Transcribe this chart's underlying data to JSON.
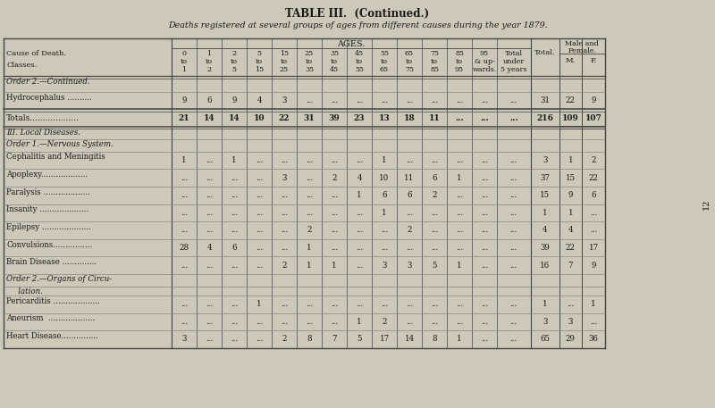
{
  "title": "TABLE III.  (Continued.)",
  "subtitle": "Deaths registered at several groups of ages from different causes during the year 1879.",
  "bg_color": "#cec8b8",
  "text_color": "#1a1a1a",
  "rows": [
    {
      "label": "Order 2.—Continued.",
      "style": "section",
      "data": null
    },
    {
      "label": "Hydrocephalus ..........",
      "style": "data",
      "data": [
        "9",
        "6",
        "9",
        "4",
        "3",
        "...",
        "...",
        "...",
        "...",
        "...",
        "...",
        "...",
        "...",
        "...",
        "31",
        "22",
        "9"
      ]
    },
    {
      "label": "Totals...................",
      "style": "totals",
      "data": [
        "21",
        "14",
        "14",
        "10",
        "22",
        "31",
        "39",
        "23",
        "13",
        "18",
        "11",
        "...",
        "...",
        "...",
        "216",
        "109",
        "107"
      ]
    },
    {
      "label": "III. Local Diseases.",
      "style": "section2",
      "data": null
    },
    {
      "label": "Order 1.—Nervous System.",
      "style": "subsection",
      "data": null
    },
    {
      "label": "Cephalitis and Meningitis",
      "style": "data",
      "data": [
        "1",
        "...",
        "1",
        "...",
        "...",
        "...",
        "...",
        "...",
        "1",
        "...",
        "...",
        "...",
        "...",
        "...",
        "3",
        "1",
        "2"
      ]
    },
    {
      "label": "Apoplexy...................",
      "style": "data",
      "data": [
        "...",
        "...",
        "...",
        "...",
        "3",
        "...",
        "2",
        "4",
        "10",
        "11",
        "6",
        "1",
        "...",
        "...",
        "37",
        "15",
        "22"
      ]
    },
    {
      "label": "Paralysis ...................",
      "style": "data",
      "data": [
        "...",
        "...",
        "...",
        "...",
        "...",
        "...",
        "...",
        "1",
        "6",
        "6",
        "2",
        "...",
        "...",
        "...",
        "15",
        "9",
        "6"
      ]
    },
    {
      "label": "Insanity ....................",
      "style": "data",
      "data": [
        "...",
        "...",
        "...",
        "...",
        "...",
        "...",
        "...",
        "...",
        "1",
        "...",
        "...",
        "...",
        "...",
        "...",
        "1",
        "1",
        "..."
      ]
    },
    {
      "label": "Epilepsy ....................",
      "style": "data",
      "data": [
        "...",
        "...",
        "...",
        "...",
        "...",
        "2",
        "...",
        "...",
        "...",
        "2",
        "...",
        "...",
        "...",
        "...",
        "4",
        "4",
        "..."
      ]
    },
    {
      "label": "Convulsions................",
      "style": "data",
      "data": [
        "28",
        "4",
        "6",
        "...",
        "...",
        "1",
        "...",
        "...",
        "...",
        "...",
        "...",
        "...",
        "...",
        "...",
        "39",
        "22",
        "17"
      ]
    },
    {
      "label": "Brain Disease ..............",
      "style": "data",
      "data": [
        "...",
        "...",
        "...",
        "...",
        "2",
        "1",
        "1",
        "...",
        "3",
        "3",
        "5",
        "1",
        "...",
        "...",
        "16",
        "7",
        "9"
      ]
    },
    {
      "label": "Order 2.—Organs of Circu-",
      "style": "subsection",
      "data": null
    },
    {
      "label": "   lation.",
      "style": "subsection2",
      "data": null
    },
    {
      "label": "Pericarditis ...................",
      "style": "data",
      "data": [
        "...",
        "...",
        "...",
        "1",
        "...",
        "...",
        "...",
        "...",
        "...",
        "...",
        "...",
        "...",
        "...",
        "...",
        "1",
        "...",
        "1"
      ]
    },
    {
      "label": "Aneurism  ...................",
      "style": "data",
      "data": [
        "...",
        "...",
        "...",
        "...",
        "...",
        "...",
        "...",
        "1",
        "2",
        "...",
        "...",
        "...",
        "...",
        "...",
        "3",
        "3",
        "..."
      ]
    },
    {
      "label": "Heart Disease...............",
      "style": "data",
      "data": [
        "3",
        "...",
        "...",
        "...",
        "2",
        "8",
        "7",
        "5",
        "17",
        "14",
        "8",
        "1",
        "...",
        "...",
        "65",
        "29",
        "36"
      ]
    }
  ]
}
